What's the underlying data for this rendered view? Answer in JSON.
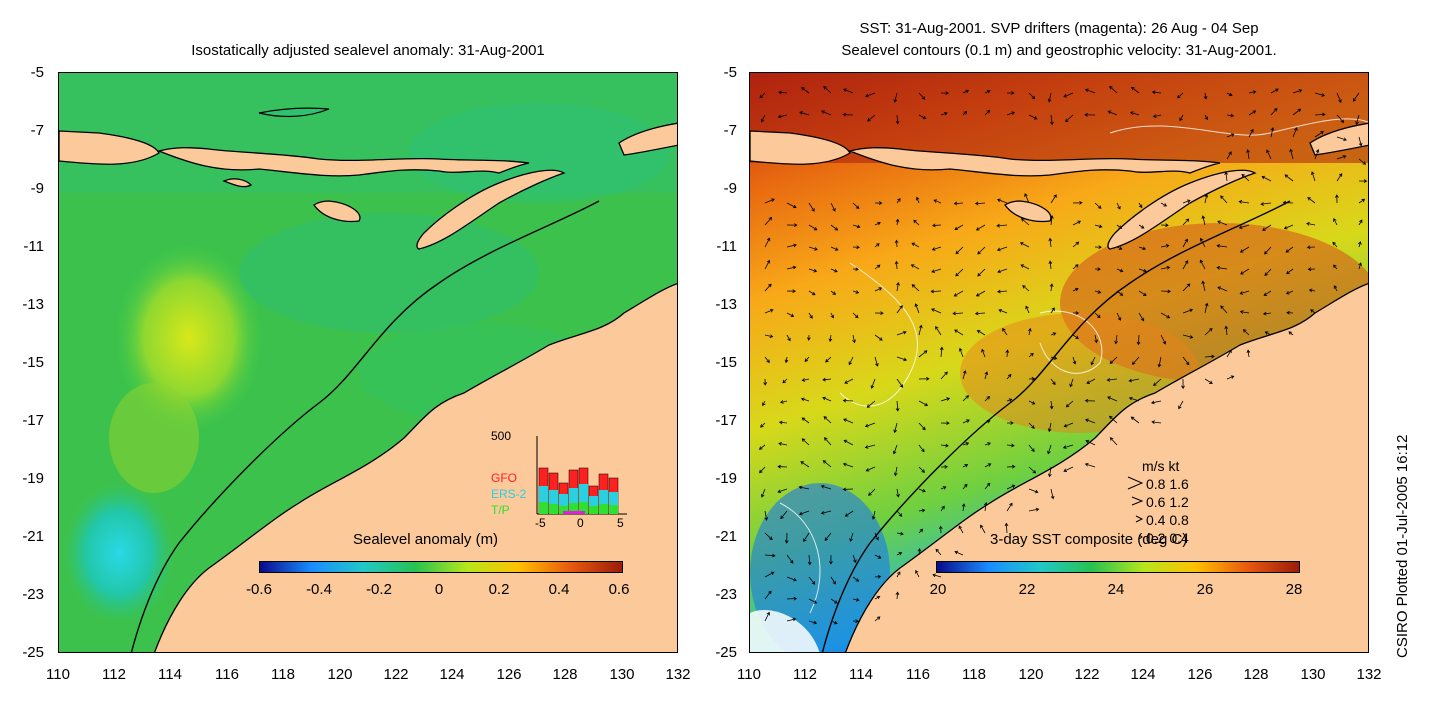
{
  "left_panel": {
    "title": "Isostatically adjusted sealevel anomaly: 31-Aug-2001",
    "colorbar_title": "Sealevel anomaly (m)",
    "colorbar_ticks": [
      "-0.6",
      "-0.4",
      "-0.2",
      "0",
      "0.2",
      "0.4",
      "0.6"
    ],
    "colorbar_colors": [
      "#0a0a8c",
      "#1a8cff",
      "#22c7c7",
      "#27c251",
      "#b5e61d",
      "#ffc000",
      "#e85a10",
      "#9b1c0a"
    ],
    "inset": {
      "y_tick": "500",
      "x_ticks": [
        "-5",
        "0",
        "5"
      ],
      "legend": [
        "GFO",
        "ERS-2",
        "T/P"
      ],
      "legend_colors": [
        "#ff2020",
        "#2ad0e0",
        "#30e030"
      ]
    }
  },
  "right_panel": {
    "title_line1": "SST: 31-Aug-2001. SVP drifters (magenta): 26 Aug - 04 Sep",
    "title_line2": "Sealevel contours (0.1 m) and geostrophic velocity: 31-Aug-2001.",
    "colorbar_title": "3-day SST composite (deg C)",
    "colorbar_ticks": [
      "20",
      "22",
      "24",
      "26",
      "28"
    ],
    "colorbar_colors": [
      "#0a0a8c",
      "#1a8cff",
      "#22c7c7",
      "#27c251",
      "#b5e61d",
      "#ffc000",
      "#e85a10",
      "#9b1c0a"
    ],
    "velocity_legend": {
      "header": "m/s  kt",
      "rows": [
        "0.8  1.6",
        "0.6  1.2",
        "0.4  0.8",
        "0.2  0.4"
      ]
    }
  },
  "axes": {
    "y_ticks": [
      "-5",
      "-7",
      "-9",
      "-11",
      "-13",
      "-15",
      "-17",
      "-19",
      "-21",
      "-23",
      "-25"
    ],
    "x_ticks": [
      "110",
      "112",
      "114",
      "116",
      "118",
      "120",
      "122",
      "124",
      "126",
      "128",
      "130",
      "132"
    ]
  },
  "credit": "CSIRO Plotted 01-Jul-2005 16:12",
  "colors": {
    "land": "#fbc99a",
    "coast": "#000000"
  }
}
